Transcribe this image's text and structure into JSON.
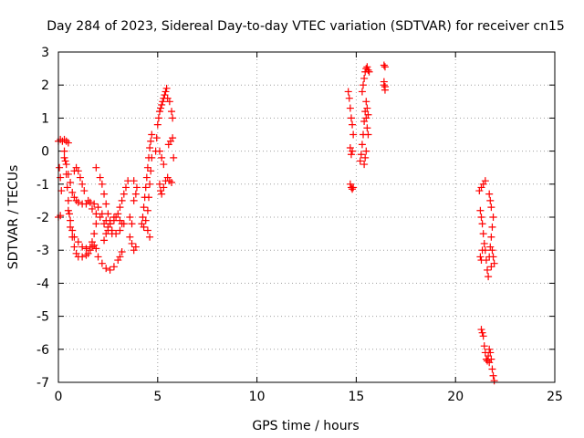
{
  "chart_data": {
    "type": "scatter",
    "title": "Day 284 of 2023, Sidereal Day-to-day VTEC variation (SDTVAR) for receiver cn15",
    "xlabel": "GPS time / hours",
    "ylabel": "SDTVAR / TECUs",
    "xlim": [
      0,
      25
    ],
    "ylim": [
      -7,
      3
    ],
    "xticks": [
      0,
      5,
      10,
      15,
      20,
      25
    ],
    "yticks": [
      -7,
      -6,
      -5,
      -4,
      -3,
      -2,
      -1,
      0,
      1,
      2,
      3
    ],
    "grid": true,
    "marker": "+",
    "marker_color": "#ff0000",
    "series": [
      {
        "name": "SDTVAR",
        "points": [
          [
            0.0,
            0.3
          ],
          [
            0.1,
            0.35
          ],
          [
            0.2,
            0.3
          ],
          [
            0.3,
            0.35
          ],
          [
            0.4,
            0.3
          ],
          [
            0.5,
            0.25
          ],
          [
            0.05,
            -0.5
          ],
          [
            0.1,
            -0.8
          ],
          [
            0.15,
            -1.2
          ],
          [
            0.0,
            -2.0
          ],
          [
            0.1,
            -1.95
          ],
          [
            0.3,
            0.0
          ],
          [
            0.35,
            -0.3
          ],
          [
            0.4,
            -0.7
          ],
          [
            0.45,
            -1.1
          ],
          [
            0.5,
            -1.5
          ],
          [
            0.55,
            -1.9
          ],
          [
            0.6,
            -2.3
          ],
          [
            0.7,
            -2.6
          ],
          [
            0.8,
            -2.9
          ],
          [
            0.9,
            -3.1
          ],
          [
            1.0,
            -3.2
          ],
          [
            1.2,
            -3.2
          ],
          [
            1.4,
            -3.15
          ],
          [
            1.5,
            -3.1
          ],
          [
            1.6,
            -3.0
          ],
          [
            1.7,
            -2.9
          ],
          [
            1.8,
            -2.85
          ],
          [
            1.9,
            -2.95
          ],
          [
            2.0,
            -3.2
          ],
          [
            2.2,
            -3.4
          ],
          [
            2.4,
            -3.55
          ],
          [
            2.6,
            -3.6
          ],
          [
            2.8,
            -3.5
          ],
          [
            3.0,
            -3.3
          ],
          [
            3.1,
            -3.2
          ],
          [
            3.2,
            -3.05
          ],
          [
            0.3,
            -0.2
          ],
          [
            0.4,
            -0.4
          ],
          [
            0.5,
            -0.7
          ],
          [
            0.6,
            -0.95
          ],
          [
            0.7,
            -1.25
          ],
          [
            0.8,
            -1.4
          ],
          [
            0.9,
            -1.5
          ],
          [
            1.0,
            -1.55
          ],
          [
            1.2,
            -1.6
          ],
          [
            1.4,
            -1.6
          ],
          [
            1.6,
            -1.55
          ],
          [
            1.8,
            -1.6
          ],
          [
            2.0,
            -1.7
          ],
          [
            2.2,
            -1.9
          ],
          [
            2.4,
            -2.1
          ],
          [
            2.6,
            -2.2
          ],
          [
            2.8,
            -2.1
          ],
          [
            3.0,
            -1.9
          ],
          [
            3.1,
            -1.7
          ],
          [
            3.2,
            -1.5
          ],
          [
            3.3,
            -1.3
          ],
          [
            3.4,
            -1.1
          ],
          [
            3.5,
            -0.9
          ],
          [
            0.8,
            -0.6
          ],
          [
            0.9,
            -0.5
          ],
          [
            1.0,
            -0.6
          ],
          [
            1.1,
            -0.8
          ],
          [
            1.2,
            -1.0
          ],
          [
            1.3,
            -1.2
          ],
          [
            1.5,
            -1.5
          ],
          [
            1.7,
            -1.75
          ],
          [
            1.9,
            -1.9
          ],
          [
            2.1,
            -2.0
          ],
          [
            2.3,
            -2.2
          ],
          [
            2.5,
            -2.4
          ],
          [
            2.7,
            -2.5
          ],
          [
            2.9,
            -2.5
          ],
          [
            3.1,
            -2.4
          ],
          [
            3.2,
            -2.2
          ],
          [
            1.9,
            -0.5
          ],
          [
            2.1,
            -0.8
          ],
          [
            2.2,
            -1.0
          ],
          [
            2.3,
            -1.3
          ],
          [
            2.4,
            -1.6
          ],
          [
            2.5,
            -1.9
          ],
          [
            2.6,
            -2.2
          ],
          [
            2.7,
            -2.4
          ],
          [
            2.3,
            -2.7
          ],
          [
            2.4,
            -2.5
          ],
          [
            2.5,
            -2.3
          ],
          [
            2.6,
            -2.1
          ],
          [
            2.8,
            -2.0
          ],
          [
            2.9,
            -2.0
          ],
          [
            3.1,
            -2.1
          ],
          [
            3.3,
            -2.2
          ],
          [
            0.5,
            -1.8
          ],
          [
            0.6,
            -2.1
          ],
          [
            0.7,
            -2.4
          ],
          [
            0.8,
            -2.6
          ],
          [
            1.0,
            -2.75
          ],
          [
            1.2,
            -2.9
          ],
          [
            1.4,
            -2.95
          ],
          [
            1.6,
            -2.9
          ],
          [
            1.7,
            -2.75
          ],
          [
            1.8,
            -2.5
          ],
          [
            1.9,
            -2.2
          ],
          [
            3.6,
            -2.6
          ],
          [
            3.7,
            -2.8
          ],
          [
            3.8,
            -3.0
          ],
          [
            3.9,
            -2.9
          ],
          [
            3.7,
            -2.2
          ],
          [
            3.6,
            -2.0
          ],
          [
            3.8,
            -1.5
          ],
          [
            3.9,
            -1.3
          ],
          [
            3.95,
            -1.1
          ],
          [
            3.8,
            -0.9
          ],
          [
            4.2,
            -2.2
          ],
          [
            4.25,
            -2.0
          ],
          [
            4.3,
            -1.7
          ],
          [
            4.35,
            -1.4
          ],
          [
            4.4,
            -1.1
          ],
          [
            4.45,
            -0.8
          ],
          [
            4.5,
            -0.5
          ],
          [
            4.55,
            -0.2
          ],
          [
            4.6,
            0.1
          ],
          [
            4.65,
            0.3
          ],
          [
            4.7,
            0.5
          ],
          [
            4.3,
            -2.3
          ],
          [
            4.4,
            -2.1
          ],
          [
            4.5,
            -1.8
          ],
          [
            4.55,
            -1.4
          ],
          [
            4.6,
            -1.0
          ],
          [
            4.65,
            -0.6
          ],
          [
            4.7,
            -0.2
          ],
          [
            4.6,
            -2.6
          ],
          [
            4.5,
            -2.4
          ],
          [
            4.9,
            0.0
          ],
          [
            4.95,
            0.4
          ],
          [
            5.0,
            0.8
          ],
          [
            5.05,
            1.0
          ],
          [
            5.1,
            1.2
          ],
          [
            5.15,
            1.3
          ],
          [
            5.2,
            1.4
          ],
          [
            5.25,
            1.5
          ],
          [
            5.3,
            1.6
          ],
          [
            5.35,
            1.7
          ],
          [
            5.4,
            1.8
          ],
          [
            5.45,
            1.9
          ],
          [
            5.5,
            1.6
          ],
          [
            5.6,
            1.5
          ],
          [
            5.7,
            1.2
          ],
          [
            5.75,
            1.0
          ],
          [
            5.1,
            -1.0
          ],
          [
            5.15,
            -1.2
          ],
          [
            5.2,
            -1.3
          ],
          [
            5.3,
            -1.1
          ],
          [
            5.4,
            -0.9
          ],
          [
            5.5,
            -0.8
          ],
          [
            5.6,
            -0.9
          ],
          [
            5.7,
            -0.95
          ],
          [
            5.75,
            0.4
          ],
          [
            5.65,
            0.3
          ],
          [
            5.55,
            0.2
          ],
          [
            5.1,
            0.0
          ],
          [
            5.2,
            -0.2
          ],
          [
            5.3,
            -0.4
          ],
          [
            5.8,
            -0.2
          ],
          [
            14.6,
            1.8
          ],
          [
            14.65,
            1.6
          ],
          [
            14.7,
            1.3
          ],
          [
            14.75,
            1.0
          ],
          [
            14.8,
            0.8
          ],
          [
            14.85,
            0.5
          ],
          [
            14.7,
            0.1
          ],
          [
            14.75,
            -0.1
          ],
          [
            14.8,
            0.0
          ],
          [
            14.7,
            -1.0
          ],
          [
            14.75,
            -1.1
          ],
          [
            14.8,
            -1.15
          ],
          [
            14.85,
            -1.1
          ],
          [
            15.2,
            -0.3
          ],
          [
            15.25,
            -0.1
          ],
          [
            15.3,
            0.2
          ],
          [
            15.35,
            0.5
          ],
          [
            15.4,
            0.9
          ],
          [
            15.45,
            1.2
          ],
          [
            15.5,
            1.0
          ],
          [
            15.55,
            0.7
          ],
          [
            15.6,
            0.5
          ],
          [
            15.35,
            2.0
          ],
          [
            15.4,
            2.2
          ],
          [
            15.45,
            2.4
          ],
          [
            15.5,
            2.5
          ],
          [
            15.55,
            2.55
          ],
          [
            15.6,
            2.45
          ],
          [
            15.65,
            2.4
          ],
          [
            15.5,
            1.5
          ],
          [
            15.55,
            1.3
          ],
          [
            15.6,
            1.1
          ],
          [
            15.4,
            -0.4
          ],
          [
            15.45,
            -0.2
          ],
          [
            15.5,
            0.0
          ],
          [
            15.3,
            1.8
          ],
          [
            16.4,
            2.6
          ],
          [
            16.45,
            2.55
          ],
          [
            16.4,
            2.0
          ],
          [
            16.45,
            1.95
          ],
          [
            16.4,
            2.1
          ],
          [
            16.45,
            1.85
          ],
          [
            21.2,
            -1.2
          ],
          [
            21.3,
            -1.1
          ],
          [
            21.4,
            -1.0
          ],
          [
            21.5,
            -0.9
          ],
          [
            21.25,
            -1.8
          ],
          [
            21.3,
            -2.0
          ],
          [
            21.35,
            -2.2
          ],
          [
            21.4,
            -2.5
          ],
          [
            21.45,
            -2.8
          ],
          [
            21.5,
            -3.0
          ],
          [
            21.55,
            -3.3
          ],
          [
            21.6,
            -3.6
          ],
          [
            21.65,
            -3.8
          ],
          [
            21.7,
            -3.2
          ],
          [
            21.75,
            -2.9
          ],
          [
            21.8,
            -2.6
          ],
          [
            21.85,
            -2.3
          ],
          [
            21.9,
            -2.0
          ],
          [
            21.7,
            -1.3
          ],
          [
            21.75,
            -1.5
          ],
          [
            21.8,
            -1.7
          ],
          [
            21.85,
            -3.0
          ],
          [
            21.9,
            -3.2
          ],
          [
            21.95,
            -3.4
          ],
          [
            21.8,
            -3.5
          ],
          [
            21.35,
            -3.0
          ],
          [
            21.3,
            -3.3
          ],
          [
            21.25,
            -3.2
          ],
          [
            21.3,
            -5.4
          ],
          [
            21.35,
            -5.5
          ],
          [
            21.4,
            -5.6
          ],
          [
            21.45,
            -5.9
          ],
          [
            21.5,
            -6.1
          ],
          [
            21.55,
            -6.3
          ],
          [
            21.6,
            -6.35
          ],
          [
            21.65,
            -6.2
          ],
          [
            21.7,
            -6.0
          ],
          [
            21.75,
            -6.1
          ],
          [
            21.8,
            -6.3
          ],
          [
            21.85,
            -6.6
          ],
          [
            21.9,
            -6.8
          ],
          [
            21.95,
            -6.95
          ],
          [
            21.7,
            -6.4
          ]
        ]
      }
    ]
  }
}
